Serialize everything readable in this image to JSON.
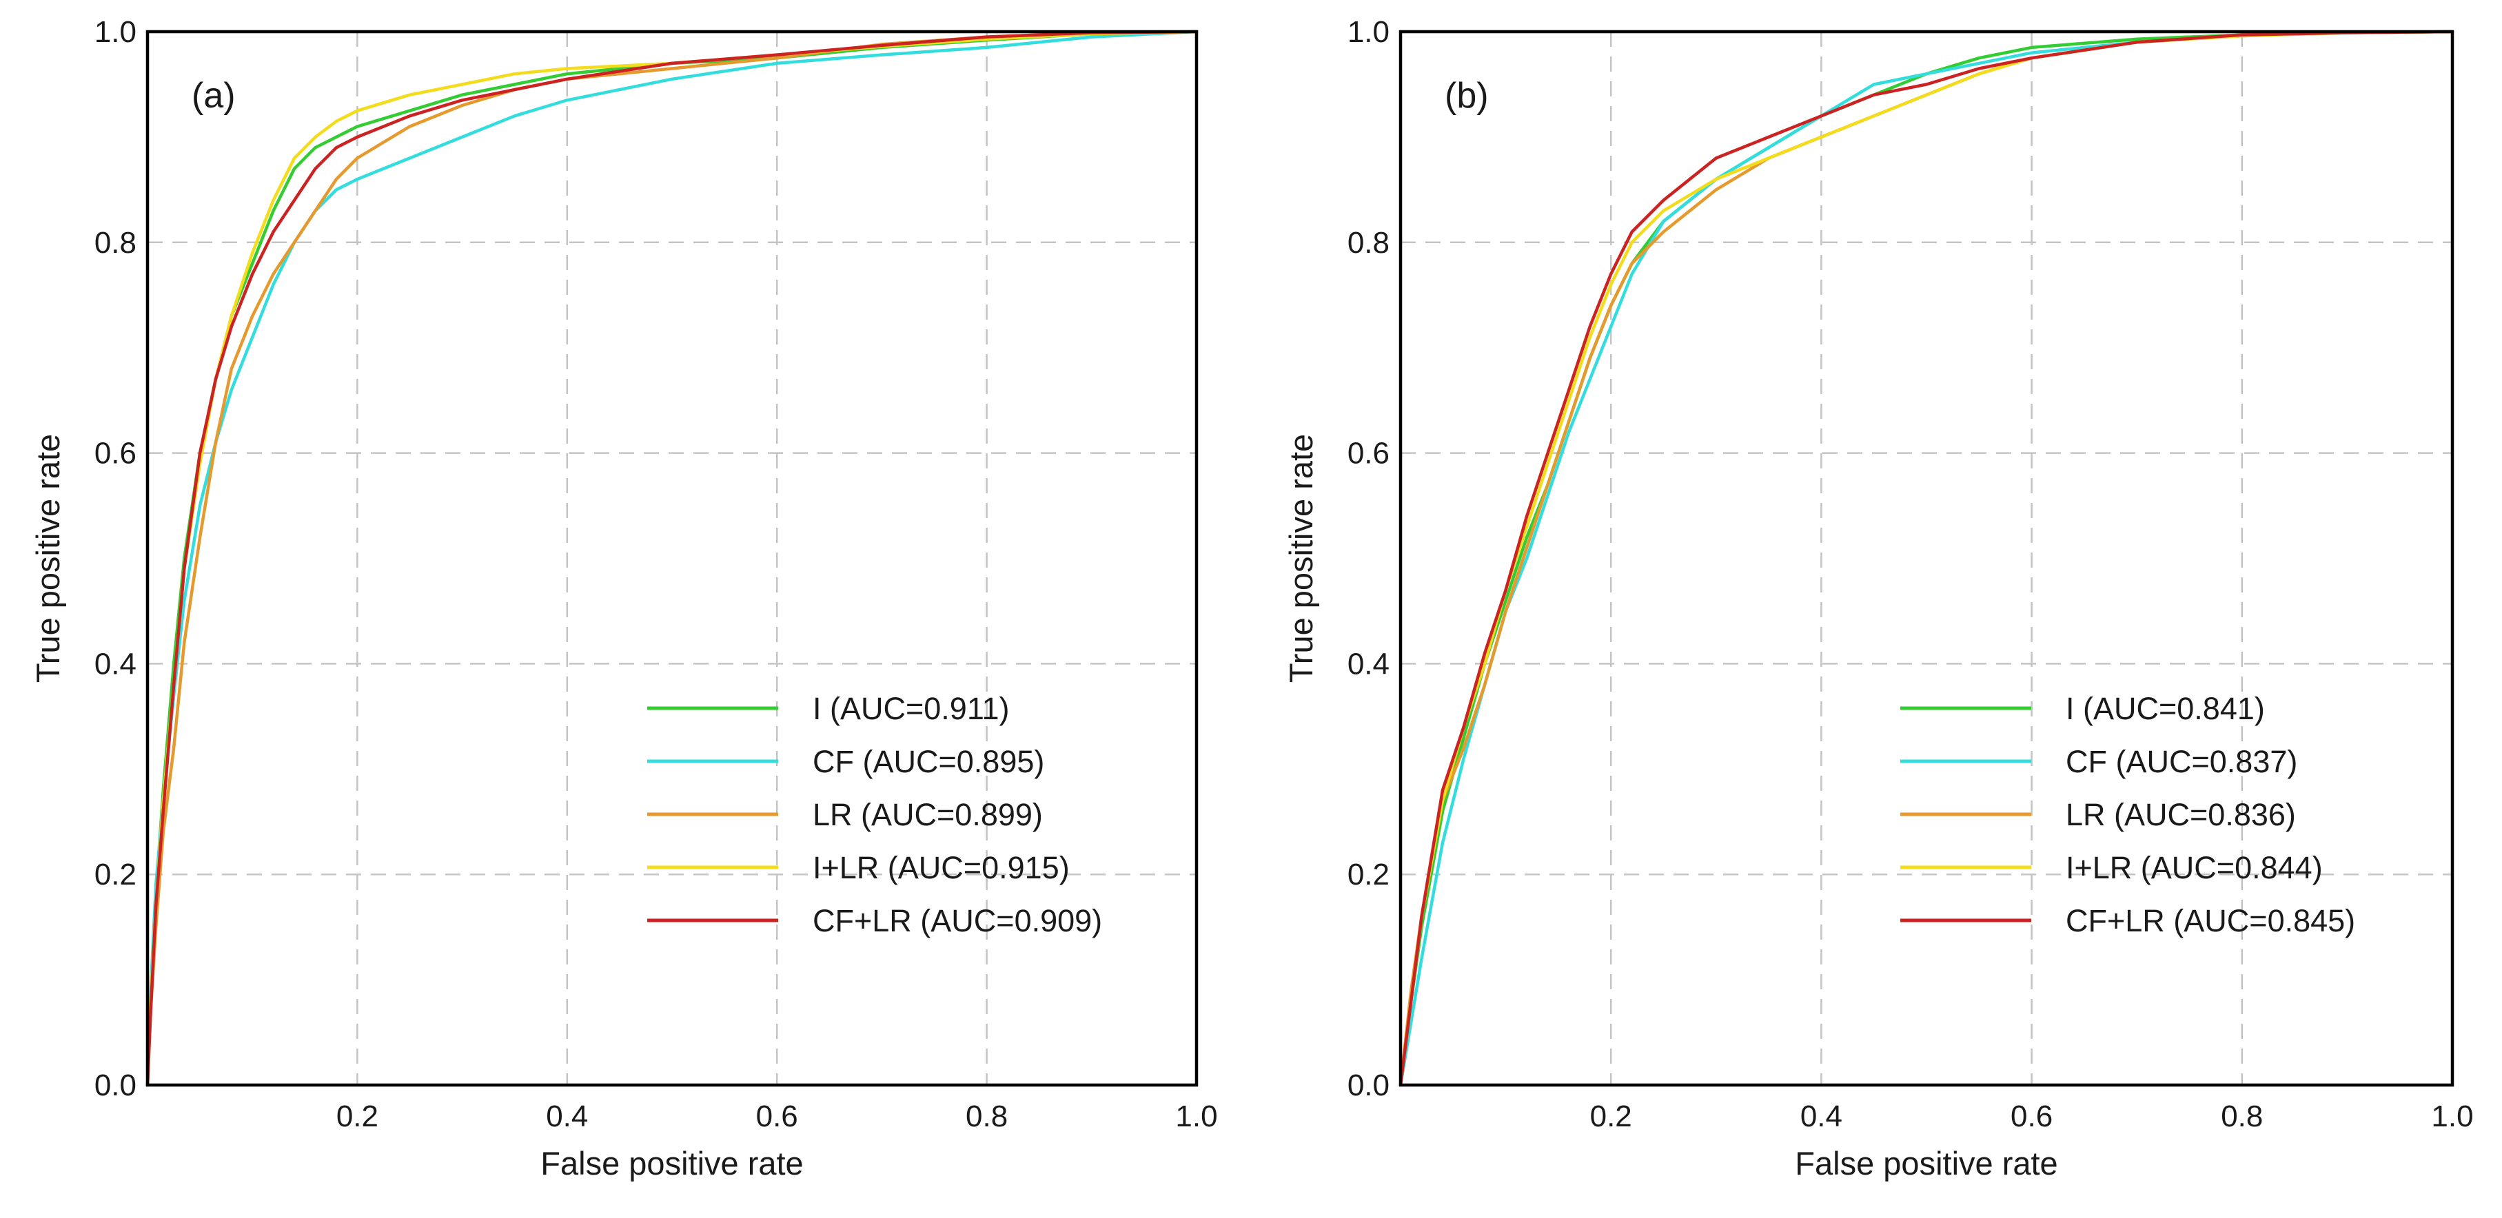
{
  "chart_data": [
    {
      "type": "line",
      "panel_label": "(a)",
      "xlabel": "False positive rate",
      "ylabel": "True positive rate",
      "xlim": [
        0,
        1
      ],
      "ylim": [
        0,
        1
      ],
      "x_ticks": [
        "0.2",
        "0.4",
        "0.6",
        "0.8",
        "1.0"
      ],
      "y_ticks": [
        "0.0",
        "0.2",
        "0.4",
        "0.6",
        "0.8",
        "1.0"
      ],
      "grid": true,
      "legend_position": "lower-right",
      "series": [
        {
          "name": "I",
          "label": "I (AUC=0.911)",
          "color": "#33cc33",
          "x": [
            0,
            0.003,
            0.008,
            0.015,
            0.025,
            0.035,
            0.05,
            0.065,
            0.08,
            0.1,
            0.12,
            0.14,
            0.16,
            0.18,
            0.2,
            0.25,
            0.3,
            0.35,
            0.4,
            0.5,
            0.6,
            0.7,
            0.8,
            0.9,
            1.0
          ],
          "y": [
            0,
            0.08,
            0.18,
            0.28,
            0.4,
            0.5,
            0.6,
            0.67,
            0.73,
            0.78,
            0.83,
            0.87,
            0.89,
            0.9,
            0.91,
            0.925,
            0.94,
            0.95,
            0.96,
            0.97,
            0.975,
            0.985,
            0.992,
            0.998,
            1.0
          ]
        },
        {
          "name": "CF",
          "label": "CF (AUC=0.895)",
          "color": "#33dddd",
          "x": [
            0,
            0.003,
            0.008,
            0.015,
            0.025,
            0.035,
            0.05,
            0.065,
            0.08,
            0.1,
            0.12,
            0.14,
            0.16,
            0.18,
            0.2,
            0.25,
            0.3,
            0.35,
            0.4,
            0.5,
            0.6,
            0.7,
            0.8,
            0.9,
            1.0
          ],
          "y": [
            0,
            0.09,
            0.19,
            0.27,
            0.37,
            0.46,
            0.55,
            0.61,
            0.66,
            0.71,
            0.76,
            0.8,
            0.83,
            0.85,
            0.86,
            0.88,
            0.9,
            0.92,
            0.935,
            0.955,
            0.97,
            0.978,
            0.985,
            0.995,
            1.0
          ]
        },
        {
          "name": "LR",
          "label": "LR (AUC=0.899)",
          "color": "#e69a2e",
          "x": [
            0,
            0.003,
            0.008,
            0.015,
            0.025,
            0.035,
            0.05,
            0.065,
            0.08,
            0.1,
            0.12,
            0.14,
            0.16,
            0.18,
            0.2,
            0.25,
            0.3,
            0.35,
            0.4,
            0.5,
            0.6,
            0.7,
            0.8,
            0.9,
            1.0
          ],
          "y": [
            0,
            0.07,
            0.15,
            0.24,
            0.32,
            0.42,
            0.52,
            0.61,
            0.68,
            0.73,
            0.77,
            0.8,
            0.83,
            0.86,
            0.88,
            0.91,
            0.93,
            0.945,
            0.955,
            0.965,
            0.975,
            0.988,
            0.995,
            0.999,
            1.0
          ]
        },
        {
          "name": "I+LR",
          "label": "I+LR (AUC=0.915)",
          "color": "#f2dc1c",
          "x": [
            0,
            0.003,
            0.008,
            0.015,
            0.025,
            0.035,
            0.05,
            0.065,
            0.08,
            0.1,
            0.12,
            0.14,
            0.16,
            0.18,
            0.2,
            0.25,
            0.3,
            0.35,
            0.4,
            0.5,
            0.6,
            0.7,
            0.8,
            0.9,
            1.0
          ],
          "y": [
            0,
            0.08,
            0.17,
            0.27,
            0.38,
            0.49,
            0.59,
            0.67,
            0.73,
            0.79,
            0.84,
            0.88,
            0.9,
            0.915,
            0.925,
            0.94,
            0.95,
            0.96,
            0.965,
            0.97,
            0.978,
            0.986,
            0.993,
            0.998,
            1.0
          ]
        },
        {
          "name": "CF+LR",
          "label": "CF+LR (AUC=0.909)",
          "color": "#cc2222",
          "x": [
            0,
            0.003,
            0.008,
            0.015,
            0.025,
            0.035,
            0.05,
            0.065,
            0.08,
            0.1,
            0.12,
            0.14,
            0.16,
            0.18,
            0.2,
            0.25,
            0.3,
            0.35,
            0.4,
            0.5,
            0.6,
            0.7,
            0.8,
            0.9,
            1.0
          ],
          "y": [
            0,
            0.07,
            0.17,
            0.26,
            0.38,
            0.49,
            0.6,
            0.67,
            0.72,
            0.77,
            0.81,
            0.84,
            0.87,
            0.89,
            0.9,
            0.92,
            0.935,
            0.945,
            0.955,
            0.97,
            0.978,
            0.987,
            0.995,
            0.999,
            1.0
          ]
        }
      ]
    },
    {
      "type": "line",
      "panel_label": "(b)",
      "xlabel": "False positive rate",
      "ylabel": "True positive rate",
      "xlim": [
        0,
        1
      ],
      "ylim": [
        0,
        1
      ],
      "x_ticks": [
        "0.2",
        "0.4",
        "0.6",
        "0.8",
        "1.0"
      ],
      "y_ticks": [
        "0.0",
        "0.2",
        "0.4",
        "0.6",
        "0.8",
        "1.0"
      ],
      "grid": true,
      "legend_position": "lower-right",
      "series": [
        {
          "name": "I",
          "label": "I (AUC=0.841)",
          "color": "#33cc33",
          "x": [
            0,
            0.01,
            0.02,
            0.04,
            0.06,
            0.08,
            0.1,
            0.12,
            0.14,
            0.16,
            0.18,
            0.2,
            0.22,
            0.25,
            0.3,
            0.35,
            0.4,
            0.45,
            0.5,
            0.55,
            0.6,
            0.7,
            0.8,
            0.9,
            1.0
          ],
          "y": [
            0,
            0.08,
            0.15,
            0.26,
            0.33,
            0.4,
            0.46,
            0.52,
            0.57,
            0.63,
            0.69,
            0.74,
            0.78,
            0.82,
            0.86,
            0.89,
            0.92,
            0.94,
            0.96,
            0.975,
            0.985,
            0.993,
            0.997,
            0.999,
            1.0
          ]
        },
        {
          "name": "CF",
          "label": "CF (AUC=0.837)",
          "color": "#33dddd",
          "x": [
            0,
            0.01,
            0.02,
            0.04,
            0.06,
            0.08,
            0.1,
            0.12,
            0.14,
            0.16,
            0.18,
            0.2,
            0.22,
            0.25,
            0.3,
            0.35,
            0.4,
            0.45,
            0.5,
            0.55,
            0.6,
            0.7,
            0.8,
            0.9,
            1.0
          ],
          "y": [
            0,
            0.06,
            0.12,
            0.23,
            0.31,
            0.38,
            0.45,
            0.5,
            0.56,
            0.62,
            0.67,
            0.72,
            0.77,
            0.82,
            0.86,
            0.89,
            0.92,
            0.95,
            0.96,
            0.97,
            0.98,
            0.99,
            0.996,
            0.999,
            1.0
          ]
        },
        {
          "name": "LR",
          "label": "LR (AUC=0.836)",
          "color": "#e69a2e",
          "x": [
            0,
            0.01,
            0.02,
            0.04,
            0.06,
            0.08,
            0.1,
            0.12,
            0.14,
            0.16,
            0.18,
            0.2,
            0.22,
            0.25,
            0.3,
            0.35,
            0.4,
            0.45,
            0.5,
            0.55,
            0.6,
            0.7,
            0.8,
            0.9,
            1.0
          ],
          "y": [
            0,
            0.09,
            0.16,
            0.27,
            0.32,
            0.38,
            0.45,
            0.51,
            0.57,
            0.63,
            0.69,
            0.74,
            0.78,
            0.81,
            0.85,
            0.88,
            0.9,
            0.92,
            0.94,
            0.96,
            0.975,
            0.99,
            0.997,
            0.999,
            1.0
          ]
        },
        {
          "name": "I+LR",
          "label": "I+LR (AUC=0.844)",
          "color": "#f2dc1c",
          "x": [
            0,
            0.01,
            0.02,
            0.04,
            0.06,
            0.08,
            0.1,
            0.12,
            0.14,
            0.16,
            0.18,
            0.2,
            0.22,
            0.25,
            0.3,
            0.35,
            0.4,
            0.45,
            0.5,
            0.55,
            0.6,
            0.7,
            0.8,
            0.9,
            1.0
          ],
          "y": [
            0,
            0.08,
            0.16,
            0.27,
            0.34,
            0.4,
            0.47,
            0.53,
            0.59,
            0.65,
            0.71,
            0.76,
            0.8,
            0.83,
            0.86,
            0.88,
            0.9,
            0.92,
            0.94,
            0.96,
            0.975,
            0.99,
            0.996,
            0.999,
            1.0
          ]
        },
        {
          "name": "CF+LR",
          "label": "CF+LR (AUC=0.845)",
          "color": "#cc2222",
          "x": [
            0,
            0.01,
            0.02,
            0.04,
            0.06,
            0.08,
            0.1,
            0.12,
            0.14,
            0.16,
            0.18,
            0.2,
            0.22,
            0.25,
            0.3,
            0.35,
            0.4,
            0.45,
            0.5,
            0.55,
            0.6,
            0.7,
            0.8,
            0.9,
            1.0
          ],
          "y": [
            0,
            0.08,
            0.16,
            0.28,
            0.34,
            0.41,
            0.47,
            0.54,
            0.6,
            0.66,
            0.72,
            0.77,
            0.81,
            0.84,
            0.88,
            0.9,
            0.92,
            0.94,
            0.95,
            0.965,
            0.975,
            0.99,
            0.997,
            0.999,
            1.0
          ]
        }
      ]
    }
  ]
}
